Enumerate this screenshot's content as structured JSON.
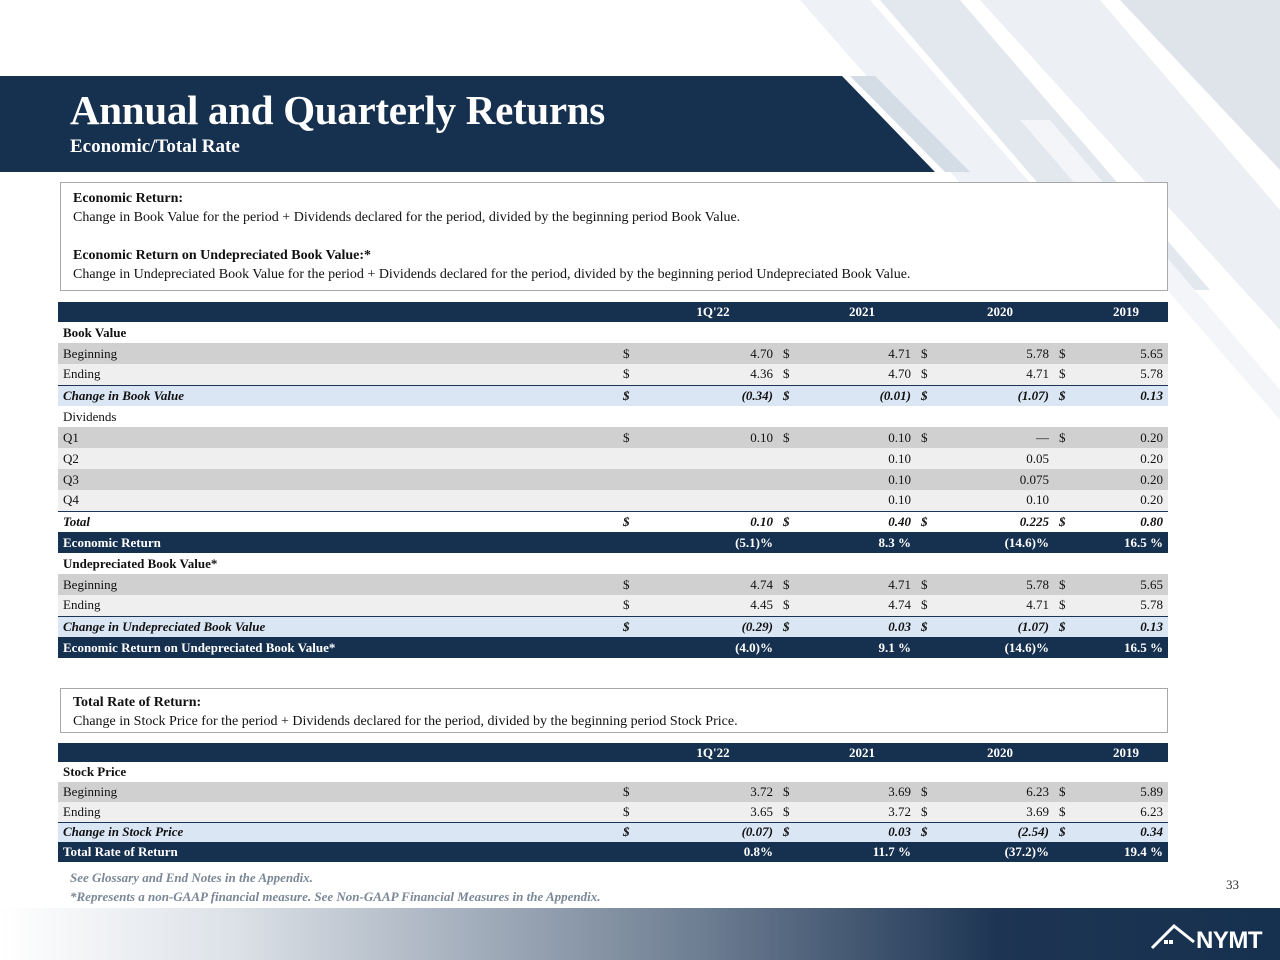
{
  "header": {
    "title": "Annual and Quarterly Returns",
    "subtitle": "Economic/Total Rate"
  },
  "definitions": {
    "economic_return_title": "Economic Return:",
    "economic_return_text": "Change in Book Value for the period + Dividends declared for the period, divided by the beginning period Book Value.",
    "undepreciated_title": "Economic Return on Undepreciated Book Value:*",
    "undepreciated_text": "Change in Undepreciated Book Value for the period + Dividends declared for the period, divided by the beginning period Undepreciated Book Value.",
    "total_rate_title": "Total Rate of Return:",
    "total_rate_text": "Change in Stock Price for the period + Dividends declared for the period, divided by the beginning period Stock Price."
  },
  "columns": [
    "1Q'22",
    "2021",
    "2020",
    "2019"
  ],
  "economic_table": {
    "book_value_label": "Book Value",
    "rows": [
      {
        "label": "Beginning",
        "cur": [
          "$",
          "$",
          "$",
          "$"
        ],
        "vals": [
          "4.70",
          "4.71",
          "5.78",
          "5.65"
        ]
      },
      {
        "label": "Ending",
        "cur": [
          "$",
          "$",
          "$",
          "$"
        ],
        "vals": [
          "4.36",
          "4.70",
          "4.71",
          "5.78"
        ]
      },
      {
        "label": "Change in Book Value",
        "cur": [
          "$",
          "$",
          "$",
          "$"
        ],
        "vals": [
          "(0.34)",
          "(0.01)",
          "(1.07)",
          "0.13"
        ]
      }
    ],
    "dividends_label": "Dividends",
    "dividends": [
      {
        "label": "Q1",
        "cur": [
          "$",
          "$",
          "$",
          "$"
        ],
        "vals": [
          "0.10",
          "0.10",
          "—",
          "0.20"
        ]
      },
      {
        "label": "Q2",
        "cur": [
          "",
          "",
          "",
          ""
        ],
        "vals": [
          "",
          "0.10",
          "0.05",
          "0.20"
        ]
      },
      {
        "label": "Q3",
        "cur": [
          "",
          "",
          "",
          ""
        ],
        "vals": [
          "",
          "0.10",
          "0.075",
          "0.20"
        ]
      },
      {
        "label": "Q4",
        "cur": [
          "",
          "",
          "",
          ""
        ],
        "vals": [
          "",
          "0.10",
          "0.10",
          "0.20"
        ]
      },
      {
        "label": "Total",
        "cur": [
          "$",
          "$",
          "$",
          "$"
        ],
        "vals": [
          "0.10",
          "0.40",
          "0.225",
          "0.80"
        ]
      }
    ],
    "economic_return": {
      "label": "Economic Return",
      "vals": [
        "(5.1)%",
        "8.3 %",
        "(14.6)%",
        "16.5 %"
      ]
    },
    "undepreciated_label": "Undepreciated Book Value*",
    "undepreciated_rows": [
      {
        "label": "Beginning",
        "cur": [
          "$",
          "$",
          "$",
          "$"
        ],
        "vals": [
          "4.74",
          "4.71",
          "5.78",
          "5.65"
        ]
      },
      {
        "label": "Ending",
        "cur": [
          "$",
          "$",
          "$",
          "$"
        ],
        "vals": [
          "4.45",
          "4.74",
          "4.71",
          "5.78"
        ]
      },
      {
        "label": "Change in Undepreciated Book Value",
        "cur": [
          "$",
          "$",
          "$",
          "$"
        ],
        "vals": [
          "(0.29)",
          "0.03",
          "(1.07)",
          "0.13"
        ]
      }
    ],
    "undepreciated_return": {
      "label": "Economic Return on Undepreciated Book Value*",
      "vals": [
        "(4.0)%",
        "9.1 %",
        "(14.6)%",
        "16.5 %"
      ]
    }
  },
  "stock_table": {
    "stock_price_label": "Stock Price",
    "rows": [
      {
        "label": "Beginning",
        "cur": [
          "$",
          "$",
          "$",
          "$"
        ],
        "vals": [
          "3.72",
          "3.69",
          "6.23",
          "5.89"
        ]
      },
      {
        "label": "Ending",
        "cur": [
          "$",
          "$",
          "$",
          "$"
        ],
        "vals": [
          "3.65",
          "3.72",
          "3.69",
          "6.23"
        ]
      },
      {
        "label": "Change in Stock Price",
        "cur": [
          "$",
          "$",
          "$",
          "$"
        ],
        "vals": [
          "(0.07)",
          "0.03",
          "(2.54)",
          "0.34"
        ]
      }
    ],
    "total_rate": {
      "label": "Total Rate of Return",
      "vals": [
        "0.8%",
        "11.7 %",
        "(37.2)%",
        "19.4 %"
      ]
    }
  },
  "footnotes": {
    "line1": "See Glossary and End Notes in the Appendix.",
    "line2": "*Represents a non-GAAP financial measure. See Non-GAAP Financial Measures in the Appendix."
  },
  "page_number": "33",
  "logo_text": "NYMT",
  "colors": {
    "navy": "#16304f",
    "change_row": "#dbe6f5",
    "dark_row": "#d0d0d0",
    "light_row": "#efefef"
  }
}
